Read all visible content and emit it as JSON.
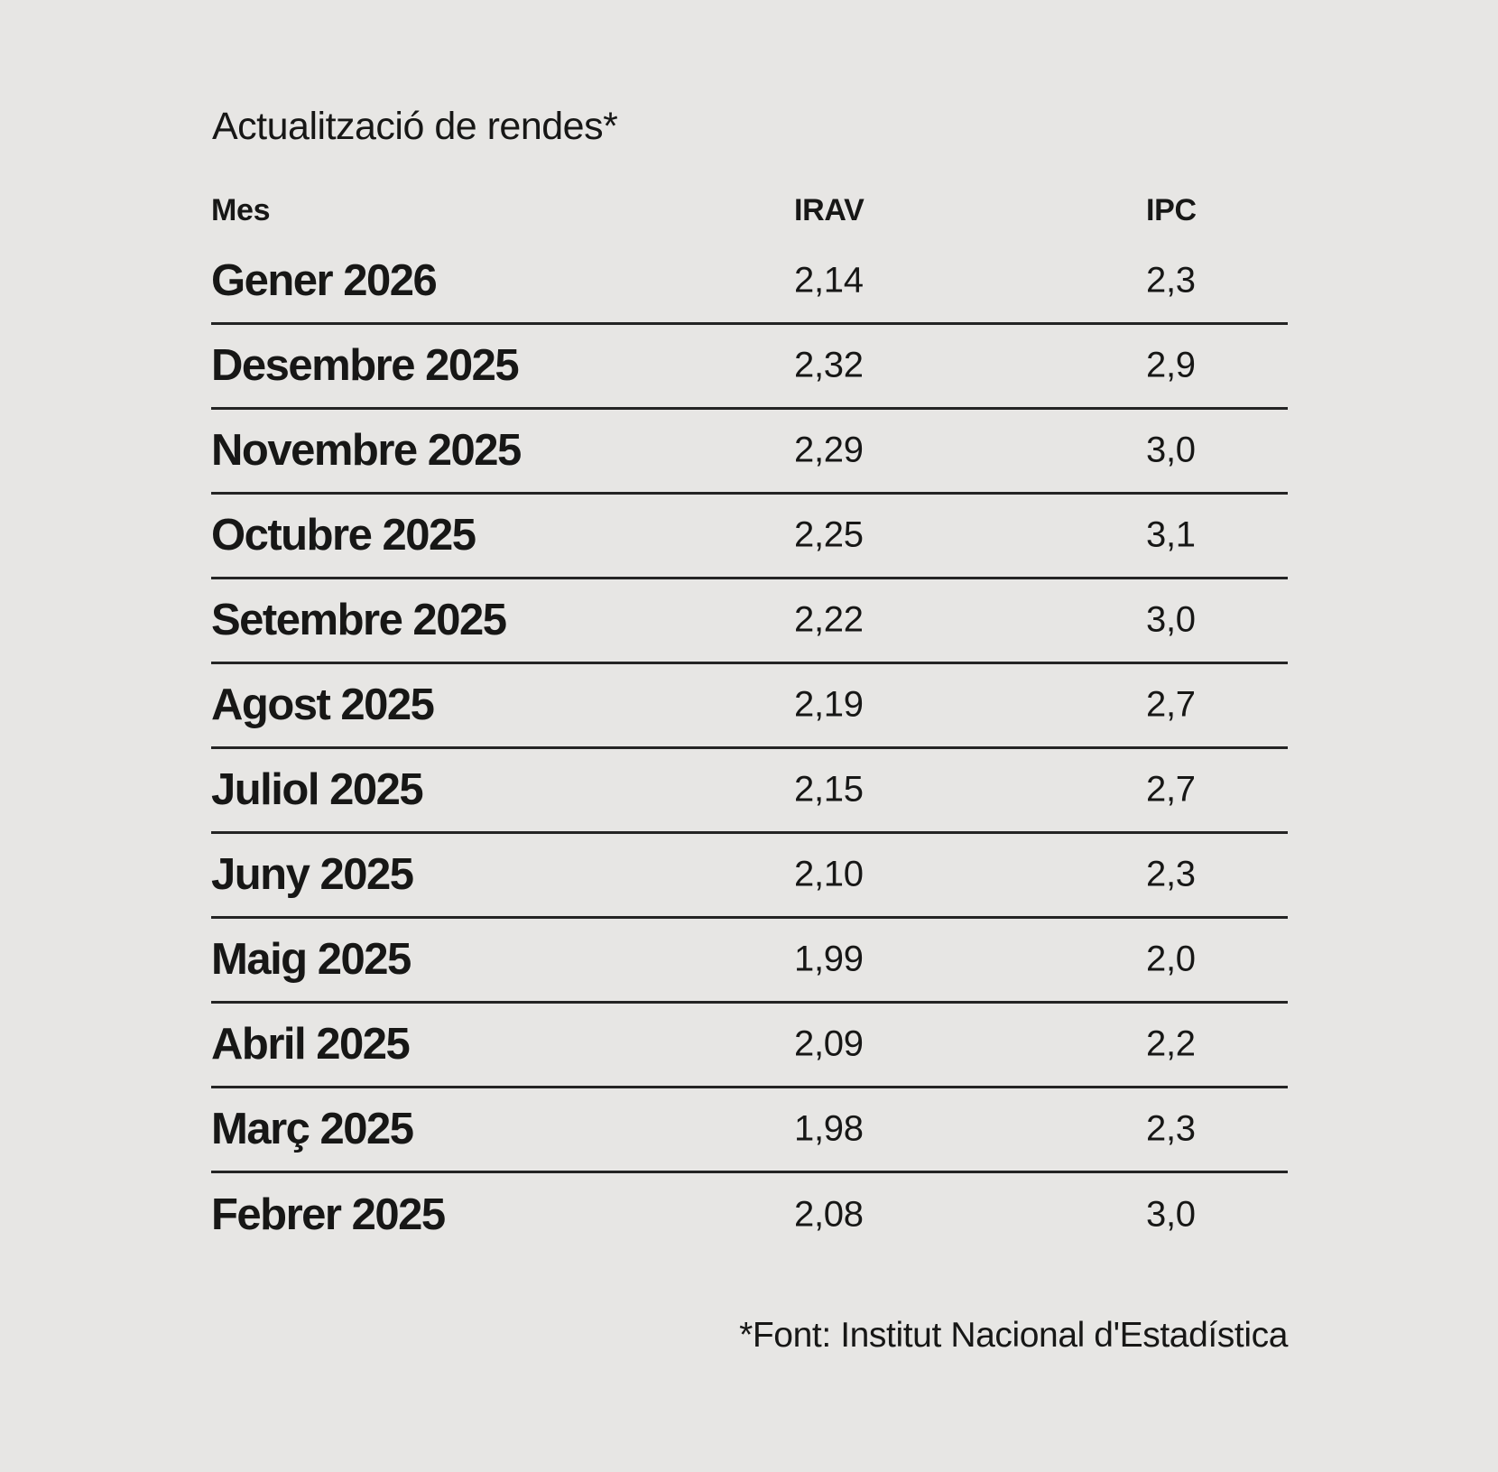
{
  "title": "Actualització de rendes*",
  "table": {
    "headers": {
      "month": "Mes",
      "irav": "IRAV",
      "ipc": "IPC"
    },
    "rows": [
      {
        "month": "Gener 2026",
        "irav": "2,14",
        "ipc": "2,3"
      },
      {
        "month": "Desembre 2025",
        "irav": "2,32",
        "ipc": "2,9"
      },
      {
        "month": "Novembre 2025",
        "irav": "2,29",
        "ipc": "3,0"
      },
      {
        "month": "Octubre 2025",
        "irav": "2,25",
        "ipc": "3,1"
      },
      {
        "month": "Setembre 2025",
        "irav": "2,22",
        "ipc": "3,0"
      },
      {
        "month": "Agost 2025",
        "irav": "2,19",
        "ipc": "2,7"
      },
      {
        "month": "Juliol 2025",
        "irav": "2,15",
        "ipc": "2,7"
      },
      {
        "month": "Juny 2025",
        "irav": "2,10",
        "ipc": "2,3"
      },
      {
        "month": "Maig 2025",
        "irav": "1,99",
        "ipc": "2,0"
      },
      {
        "month": "Abril 2025",
        "irav": "2,09",
        "ipc": "2,2"
      },
      {
        "month": "Març 2025",
        "irav": "1,98",
        "ipc": "2,3"
      },
      {
        "month": "Febrer 2025",
        "irav": "2,08",
        "ipc": "3,0"
      }
    ]
  },
  "footnote": "*Font: Institut Nacional d'Estadística",
  "colors": {
    "background": "#e7e6e4",
    "text": "#171716",
    "rule": "#242424"
  },
  "chart_data": {
    "type": "table",
    "title": "Actualització de rendes*",
    "columns": [
      "Mes",
      "IRAV",
      "IPC"
    ],
    "categories": [
      "Gener 2026",
      "Desembre 2025",
      "Novembre 2025",
      "Octubre 2025",
      "Setembre 2025",
      "Agost 2025",
      "Juliol 2025",
      "Juny 2025",
      "Maig 2025",
      "Abril 2025",
      "Març 2025",
      "Febrer 2025"
    ],
    "series": [
      {
        "name": "IRAV",
        "values": [
          2.14,
          2.32,
          2.29,
          2.25,
          2.22,
          2.19,
          2.15,
          2.1,
          1.99,
          2.09,
          1.98,
          2.08
        ]
      },
      {
        "name": "IPC",
        "values": [
          2.3,
          2.9,
          3.0,
          3.1,
          3.0,
          2.7,
          2.7,
          2.3,
          2.0,
          2.2,
          2.3,
          3.0
        ]
      }
    ],
    "source": "*Font: Institut Nacional d'Estadística",
    "layout": {
      "grid": "horizontal-rules-between-rows",
      "legend": "none"
    }
  }
}
